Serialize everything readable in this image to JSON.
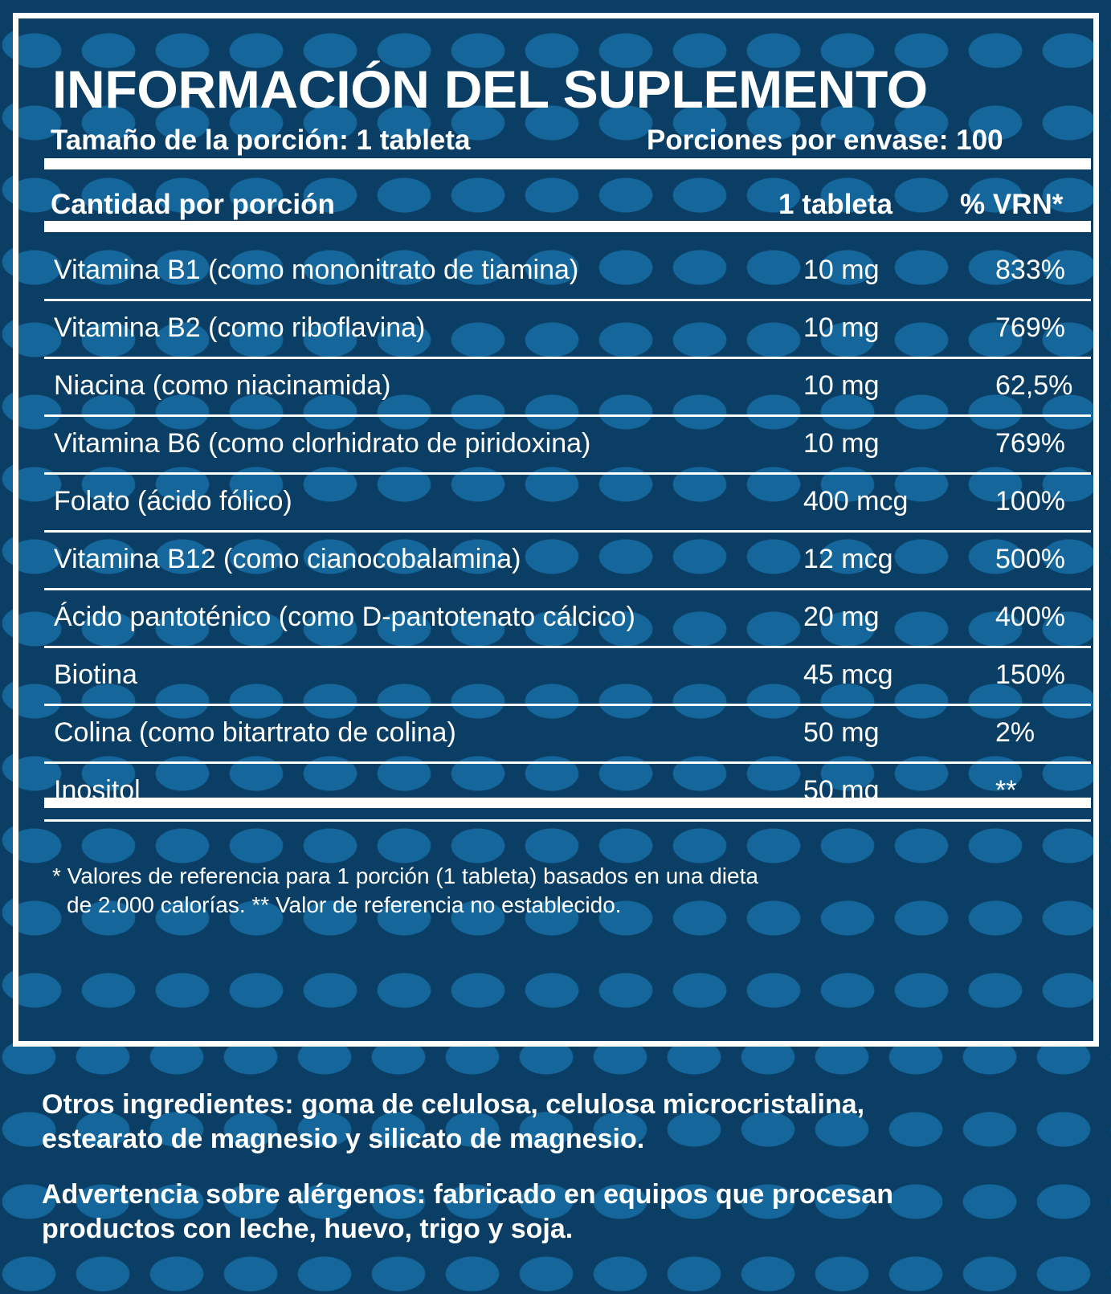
{
  "title": "INFORMACIÓN DEL SUPLEMENTO",
  "serving_size": "Tamaño de la porción: 1 tableta",
  "servings_per_container": "Porciones por envase: 100",
  "table": {
    "headers": [
      "Cantidad por porción",
      "1 tableta",
      "% VRN*"
    ],
    "rows": [
      {
        "name": "Vitamina B1 (como mononitrato de tiamina)",
        "amount": "10 mg",
        "vrn": "833%"
      },
      {
        "name": "Vitamina B2 (como riboflavina)",
        "amount": "10 mg",
        "vrn": "769%"
      },
      {
        "name": "Niacina (como niacinamida)",
        "amount": "10 mg",
        "vrn": "62,5%"
      },
      {
        "name": "Vitamina B6 (como clorhidrato de piridoxina)",
        "amount": "10 mg",
        "vrn": "769%"
      },
      {
        "name": "Folato (ácido fólico)",
        "amount": "400 mcg",
        "vrn": "100%"
      },
      {
        "name": "Vitamina B12 (como cianocobalamina)",
        "amount": "12 mcg",
        "vrn": "500%"
      },
      {
        "name": "Ácido pantoténico (como D-pantotenato cálcico)",
        "amount": "20 mg",
        "vrn": "400%"
      },
      {
        "name": "Biotina",
        "amount": "45 mcg",
        "vrn": "150%"
      },
      {
        "name": "Colina (como bitartrato de colina)",
        "amount": "50 mg",
        "vrn": "2%"
      },
      {
        "name": "Inositol",
        "amount": "50 mg",
        "vrn": "**"
      }
    ]
  },
  "footnote": [
    "* Valores de referencia para 1 porción (1 tableta) basados en una dieta",
    "de 2.000 calorías.  ** Valor de referencia no establecido."
  ],
  "other_ingredients": [
    "Otros ingredientes: goma de celulosa, celulosa microcristalina,",
    "estearato de magnesio y silicato de magnesio."
  ],
  "allergen_warning": [
    "Advertencia sobre alérgenos: fabricado en equipos que procesan",
    "productos con leche, huevo, trigo y soja."
  ],
  "colors": {
    "background": "#0b3e64",
    "dots": "#15669b",
    "text": "#ffffff"
  }
}
